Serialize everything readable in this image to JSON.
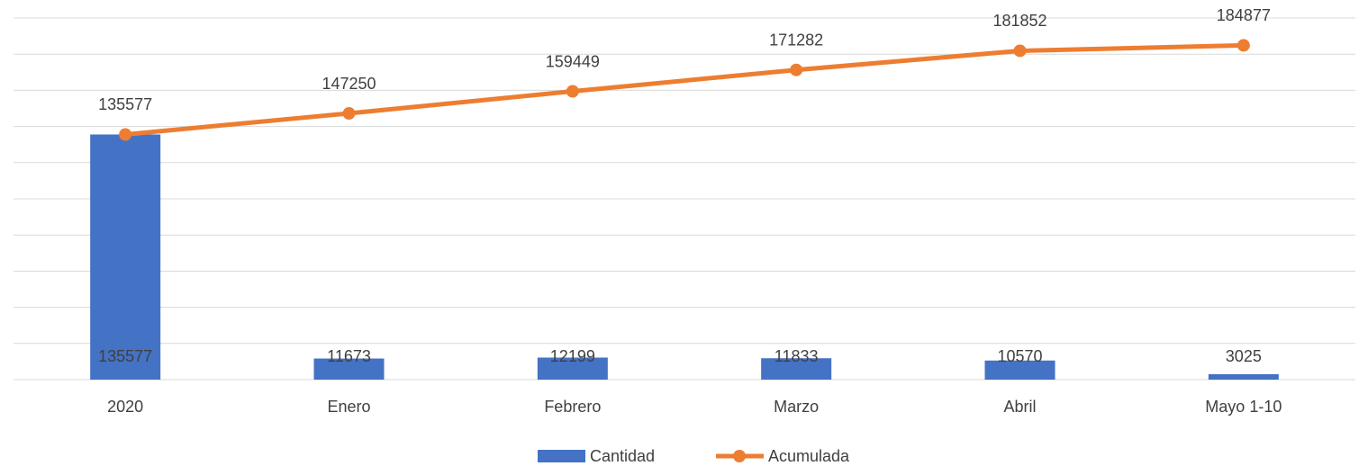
{
  "chart_data": {
    "type": "combo",
    "categories": [
      "2020",
      "Enero",
      "Febrero",
      "Marzo",
      "Abril",
      "Mayo 1-10"
    ],
    "series": [
      {
        "name": "Cantidad",
        "type": "bar",
        "color": "#4472c4",
        "values": [
          135577,
          11673,
          12199,
          11833,
          10570,
          3025
        ]
      },
      {
        "name": "Acumulada",
        "type": "line",
        "color": "#ed7d31",
        "values": [
          135577,
          147250,
          159449,
          171282,
          181852,
          184877
        ]
      }
    ],
    "ylim": [
      0,
      200000
    ],
    "yticks": [
      0,
      20000,
      40000,
      60000,
      80000,
      100000,
      120000,
      140000,
      160000,
      180000,
      200000
    ],
    "grid": true,
    "legend": "bottom"
  }
}
